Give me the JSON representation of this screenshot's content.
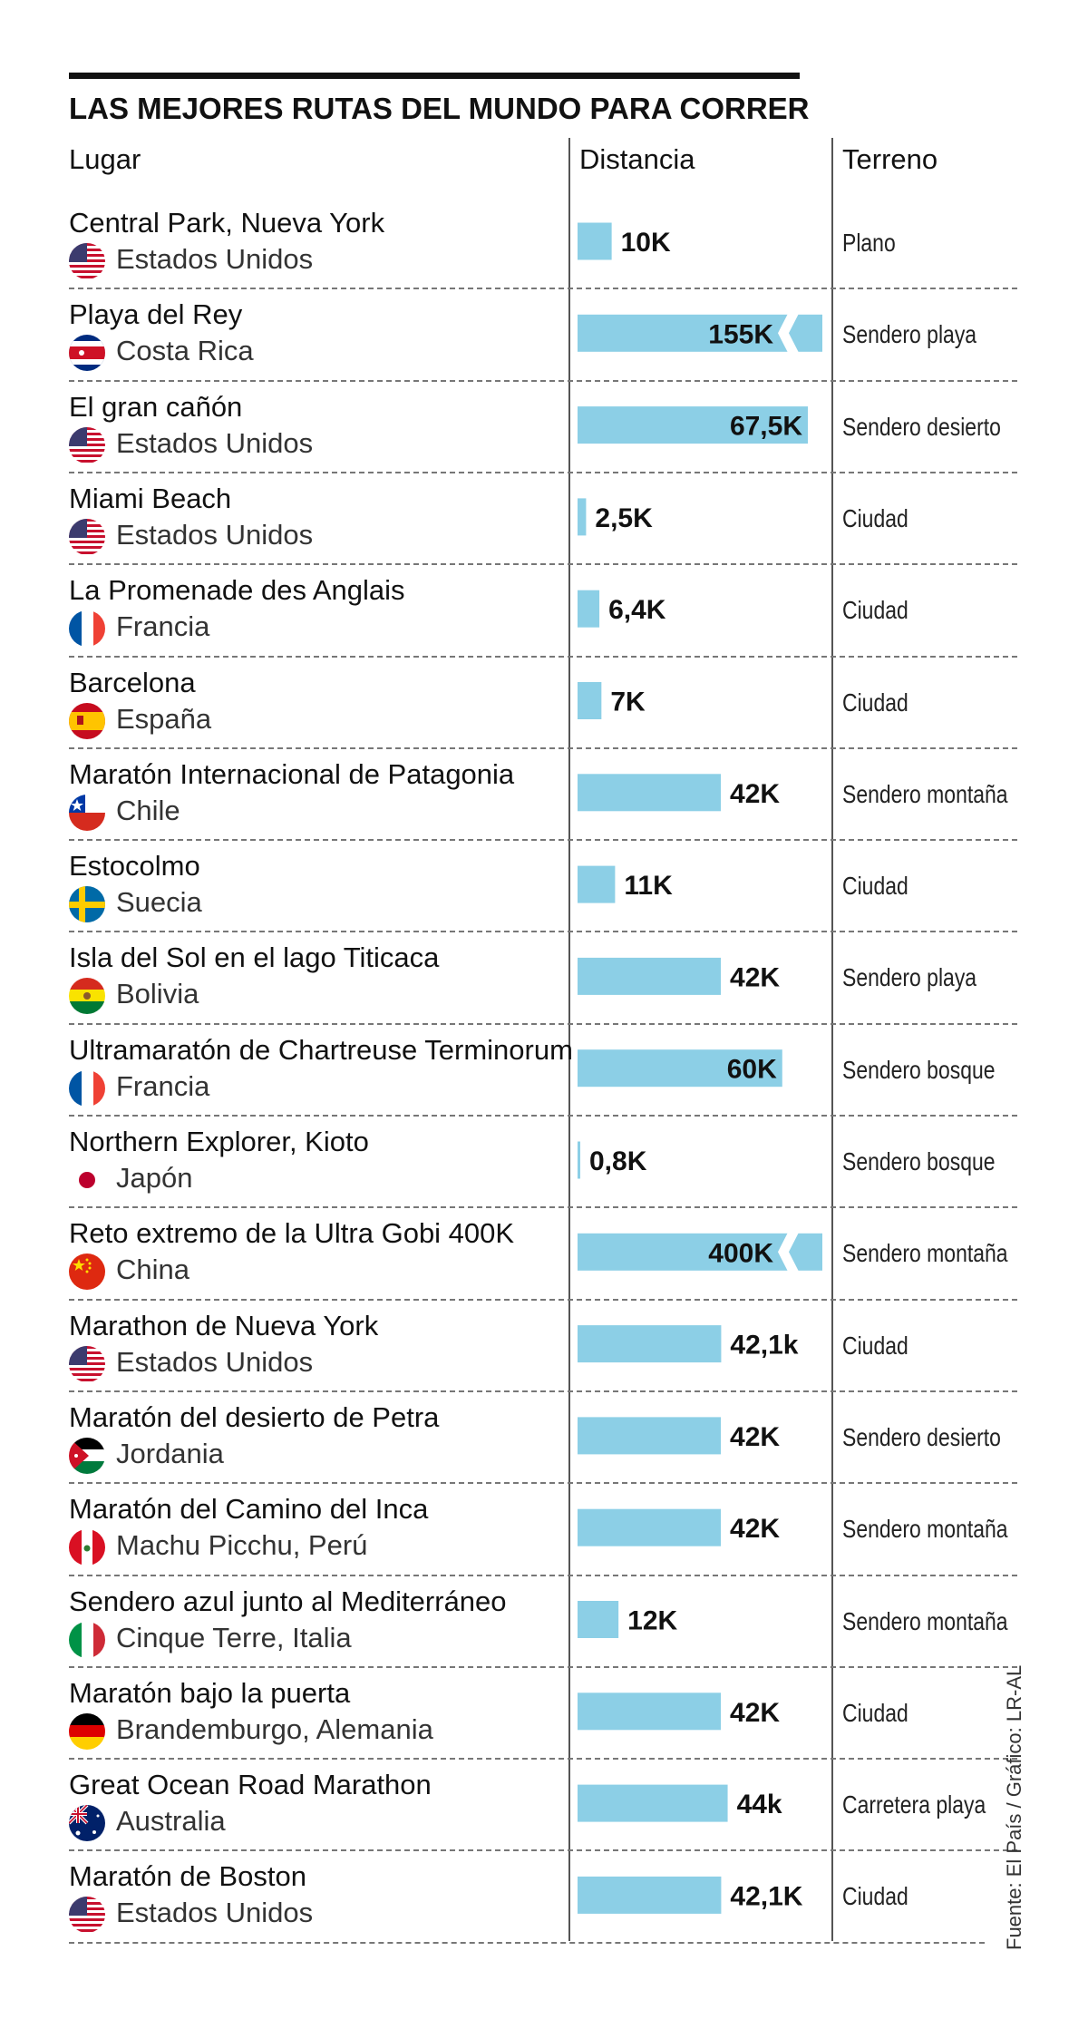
{
  "title": "LAS MEJORES RUTAS DEL MUNDO PARA CORRER",
  "headers": {
    "place": "Lugar",
    "distance": "Distancia",
    "terrain": "Terreno"
  },
  "source": "Fuente: El País / Gráfico: LR-AL",
  "colors": {
    "bar": "#8ccfe6",
    "text": "#111111"
  },
  "chart_data": {
    "type": "bar",
    "orientation": "horizontal",
    "title": "LAS MEJORES RUTAS DEL MUNDO PARA CORRER",
    "xlabel": "Distancia",
    "ylabel": "Lugar",
    "unit": "km",
    "scale_max": 67.5,
    "axis_break_note": "Bars for 155K and 400K are truncated with a break mark",
    "categories": [
      "Central Park, Nueva York",
      "Playa del Rey",
      "El gran cañón",
      "Miami Beach",
      "La Promenade des Anglais",
      "Barcelona",
      "Maratón Internacional de Patagonia",
      "Estocolmo",
      "Isla del Sol en el lago Titicaca",
      "Ultramaratón de Chartreuse Terminorum",
      "Northern Explorer, Kioto",
      "Reto extremo de la Ultra Gobi 400K",
      "Marathon de Nueva York",
      "Maratón del desierto de Petra",
      "Maratón del Camino del Inca",
      "Sendero azul junto al Mediterráneo",
      "Maratón bajo la puerta",
      "Great Ocean Road Marathon",
      "Maratón de Boston"
    ],
    "values": [
      10,
      155,
      67.5,
      2.5,
      6.4,
      7,
      42,
      11,
      42,
      60,
      0.8,
      400,
      42.1,
      42,
      42,
      12,
      42,
      44,
      42.1
    ]
  },
  "rows": [
    {
      "name": "Central Park, Nueva York",
      "country": "Estados Unidos",
      "flag": "usa-flag-icon",
      "value": 10,
      "label": "10K",
      "terrain": "Plano",
      "broken": false
    },
    {
      "name": "Playa del Rey",
      "country": "Costa Rica",
      "flag": "costa-rica-flag-icon",
      "value": 155,
      "label": "155K",
      "terrain": "Sendero playa",
      "broken": true
    },
    {
      "name": "El gran cañón",
      "country": "Estados Unidos",
      "flag": "usa-flag-icon",
      "value": 67.5,
      "label": "67,5K",
      "terrain": "Sendero desierto",
      "broken": false
    },
    {
      "name": "Miami Beach",
      "country": "Estados Unidos",
      "flag": "usa-flag-icon",
      "value": 2.5,
      "label": "2,5K",
      "terrain": "Ciudad",
      "broken": false
    },
    {
      "name": "La Promenade des Anglais",
      "country": "Francia",
      "flag": "france-flag-icon",
      "value": 6.4,
      "label": "6,4K",
      "terrain": "Ciudad",
      "broken": false
    },
    {
      "name": "Barcelona",
      "country": "España",
      "flag": "spain-flag-icon",
      "value": 7,
      "label": "7K",
      "terrain": "Ciudad",
      "broken": false
    },
    {
      "name": "Maratón Internacional de Patagonia",
      "country": "Chile",
      "flag": "chile-flag-icon",
      "value": 42,
      "label": "42K",
      "terrain": "Sendero montaña",
      "broken": false
    },
    {
      "name": "Estocolmo",
      "country": "Suecia",
      "flag": "sweden-flag-icon",
      "value": 11,
      "label": "11K",
      "terrain": "Ciudad",
      "broken": false
    },
    {
      "name": "Isla del Sol en el lago Titicaca",
      "country": "Bolivia",
      "flag": "bolivia-flag-icon",
      "value": 42,
      "label": "42K",
      "terrain": "Sendero playa",
      "broken": false
    },
    {
      "name": "Ultramaratón de Chartreuse Terminorum",
      "country": "Francia",
      "flag": "france-flag-icon",
      "value": 60,
      "label": "60K",
      "terrain": "Sendero bosque",
      "broken": false
    },
    {
      "name": "Northern Explorer, Kioto",
      "country": "Japón",
      "flag": "japan-flag-icon",
      "value": 0.8,
      "label": "0,8K",
      "terrain": "Sendero bosque",
      "broken": false
    },
    {
      "name": "Reto extremo de la Ultra Gobi 400K",
      "country": "China",
      "flag": "china-flag-icon",
      "value": 400,
      "label": "400K",
      "terrain": "Sendero montaña",
      "broken": true
    },
    {
      "name": "Marathon de Nueva York",
      "country": "Estados Unidos",
      "flag": "usa-flag-icon",
      "value": 42.1,
      "label": "42,1k",
      "terrain": "Ciudad",
      "broken": false
    },
    {
      "name": "Maratón del desierto de Petra",
      "country": "Jordania",
      "flag": "jordan-flag-icon",
      "value": 42,
      "label": "42K",
      "terrain": "Sendero desierto",
      "broken": false
    },
    {
      "name": "Maratón del Camino del Inca",
      "country": "Machu Picchu, Perú",
      "flag": "peru-flag-icon",
      "value": 42,
      "label": "42K",
      "terrain": "Sendero montaña",
      "broken": false
    },
    {
      "name": "Sendero azul junto al Mediterráneo",
      "country": "Cinque Terre, Italia",
      "flag": "italy-flag-icon",
      "value": 12,
      "label": "12K",
      "terrain": "Sendero montaña",
      "broken": false
    },
    {
      "name": "Maratón bajo la puerta",
      "country": "Brandemburgo, Alemania",
      "flag": "germany-flag-icon",
      "value": 42,
      "label": "42K",
      "terrain": "Ciudad",
      "broken": false
    },
    {
      "name": "Great Ocean Road Marathon",
      "country": "Australia",
      "flag": "australia-flag-icon",
      "value": 44,
      "label": "44k",
      "terrain": "Carretera playa",
      "broken": false
    },
    {
      "name": "Maratón de Boston",
      "country": "Estados Unidos",
      "flag": "usa-flag-icon",
      "value": 42.1,
      "label": "42,1K",
      "terrain": "Ciudad",
      "broken": false
    }
  ]
}
